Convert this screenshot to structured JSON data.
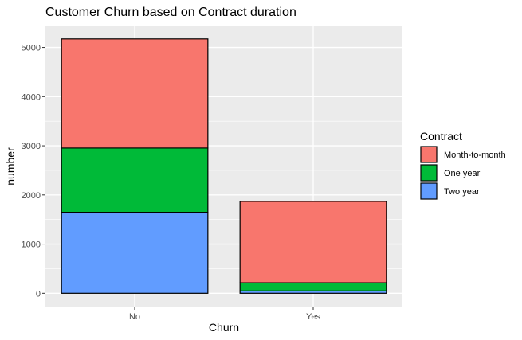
{
  "chart_data": {
    "type": "bar",
    "stacked": true,
    "title": "Customer Churn based on Contract duration",
    "xlabel": "Churn",
    "ylabel": "number",
    "categories": [
      "No",
      "Yes"
    ],
    "ylim": [
      0,
      5400
    ],
    "yticks": [
      0,
      1000,
      2000,
      3000,
      4000,
      5000
    ],
    "ytick_labels": [
      "0",
      "1000",
      "2000",
      "3000",
      "4000",
      "5000"
    ],
    "legend_position": "right",
    "legend_title": "Contract",
    "series": [
      {
        "name": "Month-to-month",
        "color": "#F8766D",
        "values": [
          2220,
          1655
        ]
      },
      {
        "name": "One year",
        "color": "#00BA38",
        "values": [
          1307,
          166
        ]
      },
      {
        "name": "Two year",
        "color": "#619CFF",
        "values": [
          1647,
          48
        ]
      }
    ],
    "stack_order_bottom_to_top": [
      "Two year",
      "One year",
      "Month-to-month"
    ],
    "panel_background": "#EBEBEB",
    "grid_color": "#FFFFFF"
  }
}
